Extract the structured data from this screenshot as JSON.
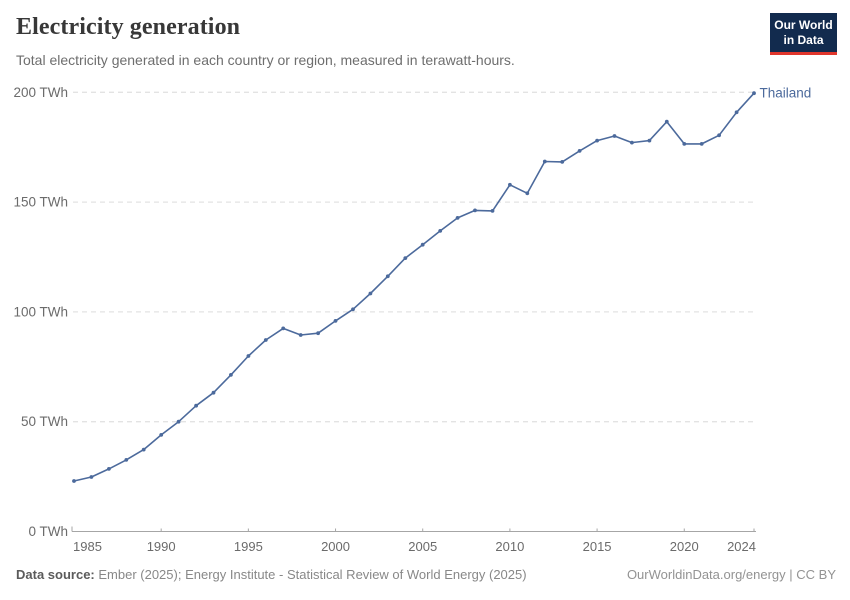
{
  "header": {
    "title": "Electricity generation",
    "subtitle": "Total electricity generated in each country or region, measured in terawatt-hours."
  },
  "logo": {
    "line1": "Our World",
    "line2": "in Data",
    "bg_color": "#122B4E",
    "bar_color": "#E0362C"
  },
  "footer": {
    "source_label": "Data source:",
    "source_text": " Ember (2025); Energy Institute - Statistical Review of World Energy (2025)",
    "right_text": "OurWorldinData.org/energy | CC BY"
  },
  "chart_data": {
    "type": "line",
    "title": "Electricity generation",
    "unit": "TWh",
    "grid": "horizontal-dashed",
    "legend_position": "end-of-line-label",
    "ylim": [
      0,
      200
    ],
    "xlim": [
      1985,
      2024
    ],
    "yticks": [
      {
        "value": 0,
        "label": "0 TWh"
      },
      {
        "value": 50,
        "label": "50 TWh"
      },
      {
        "value": 100,
        "label": "100 TWh"
      },
      {
        "value": 150,
        "label": "150 TWh"
      },
      {
        "value": 200,
        "label": "200 TWh"
      }
    ],
    "xticks": [
      {
        "value": 1985,
        "label": "1985"
      },
      {
        "value": 1990,
        "label": "1990"
      },
      {
        "value": 1995,
        "label": "1995"
      },
      {
        "value": 2000,
        "label": "2000"
      },
      {
        "value": 2005,
        "label": "2005"
      },
      {
        "value": 2010,
        "label": "2010"
      },
      {
        "value": 2015,
        "label": "2015"
      },
      {
        "value": 2020,
        "label": "2020"
      },
      {
        "value": 2024,
        "label": "2024"
      }
    ],
    "x": [
      1985,
      1986,
      1987,
      1988,
      1989,
      1990,
      1991,
      1992,
      1993,
      1994,
      1995,
      1996,
      1997,
      1998,
      1999,
      2000,
      2001,
      2002,
      2003,
      2004,
      2005,
      2006,
      2007,
      2008,
      2009,
      2010,
      2011,
      2012,
      2013,
      2014,
      2015,
      2016,
      2017,
      2018,
      2019,
      2020,
      2021,
      2022,
      2023,
      2024
    ],
    "series": [
      {
        "name": "Thailand",
        "color": "#4C6A9C",
        "values": [
          23.0,
          24.8,
          28.5,
          32.6,
          37.3,
          44.0,
          50.0,
          57.3,
          63.2,
          71.3,
          79.9,
          87.2,
          92.5,
          89.5,
          90.3,
          95.9,
          101.2,
          108.4,
          116.2,
          124.5,
          130.6,
          136.9,
          142.8,
          146.2,
          146.0,
          157.9,
          154.0,
          168.5,
          168.3,
          173.3,
          178.0,
          180.1,
          177.1,
          178.0,
          186.6,
          176.5,
          176.5,
          180.4,
          190.9,
          199.6
        ]
      }
    ],
    "colors": {
      "gridline": "#e3e3e3",
      "axis": "#a6a6a6",
      "tick_label": "#6b6b6b"
    }
  }
}
